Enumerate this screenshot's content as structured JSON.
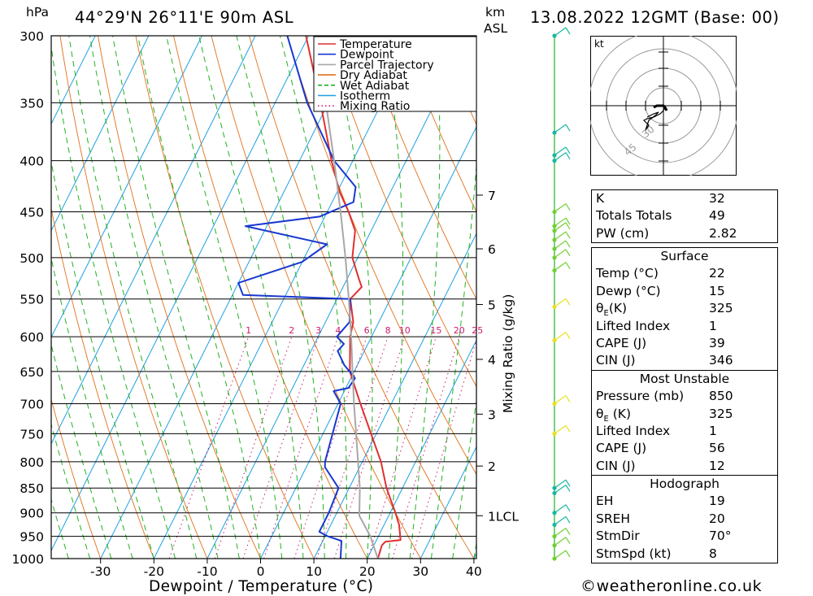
{
  "header": {
    "location": "44°29'N 26°11'E 90m ASL",
    "pressure_unit": "hPa",
    "height_unit_top": "km",
    "height_unit_bottom": "ASL",
    "datetime": "13.08.2022 12GMT (Base: 00)"
  },
  "chart_data": {
    "type": "line",
    "subtype": "skew-T log-P diagram",
    "xlabel": "Dewpoint / Temperature (°C)",
    "ylabel": "hPa",
    "y2label": "Mixing Ratio (g/kg)",
    "pressure_range": [
      1000,
      300
    ],
    "temperature_ticks": [
      -30,
      -20,
      -10,
      0,
      10,
      20,
      30,
      40
    ],
    "pressure_ticks": [
      300,
      350,
      400,
      450,
      500,
      550,
      600,
      650,
      700,
      750,
      800,
      850,
      900,
      950,
      1000
    ],
    "height_ticks_km": [
      {
        "label": "7",
        "pressure": 433
      },
      {
        "label": "6",
        "pressure": 490
      },
      {
        "label": "5",
        "pressure": 557
      },
      {
        "label": "4",
        "pressure": 632
      },
      {
        "label": "3",
        "pressure": 717
      },
      {
        "label": "2",
        "pressure": 808
      },
      {
        "label": "1LCL",
        "pressure": 906
      }
    ],
    "mixing_ratio_labels": [
      "1",
      "2",
      "3",
      "4",
      "6",
      "8",
      "10",
      "15",
      "20",
      "25"
    ],
    "mixing_ratio_values": [
      1,
      2,
      3,
      4,
      6,
      8,
      10,
      15,
      20,
      25
    ],
    "isotherm_color": "#1ca0e0",
    "dry_adiabat_color": "#e07018",
    "wet_adiabat_color": "#22b022",
    "mixing_ratio_color": "#d01870",
    "legend": [
      {
        "label": "Temperature",
        "color": "#e03030",
        "style": "solid"
      },
      {
        "label": "Dewpoint",
        "color": "#1838d0",
        "style": "solid"
      },
      {
        "label": "Parcel Trajectory",
        "color": "#a8a8a8",
        "style": "solid"
      },
      {
        "label": "Dry Adiabat",
        "color": "#e07018",
        "style": "solid"
      },
      {
        "label": "Wet Adiabat",
        "color": "#22b022",
        "style": "dashed"
      },
      {
        "label": "Isotherm",
        "color": "#1ca0e0",
        "style": "solid"
      },
      {
        "label": "Mixing Ratio",
        "color": "#d01870",
        "style": "dotted"
      }
    ],
    "series": [
      {
        "name": "Temperature",
        "color": "#e03030",
        "points": [
          [
            1000,
            22.0
          ],
          [
            970,
            21.5
          ],
          [
            962,
            21.8
          ],
          [
            958,
            24.5
          ],
          [
            925,
            22.8
          ],
          [
            900,
            21.0
          ],
          [
            850,
            17.0
          ],
          [
            800,
            13.5
          ],
          [
            750,
            9.0
          ],
          [
            700,
            4.2
          ],
          [
            650,
            -0.8
          ],
          [
            600,
            -4.0
          ],
          [
            580,
            -4.8
          ],
          [
            550,
            -7.5
          ],
          [
            535,
            -6.5
          ],
          [
            525,
            -7.8
          ],
          [
            500,
            -11.0
          ],
          [
            470,
            -13.0
          ],
          [
            450,
            -16.0
          ],
          [
            430,
            -19.5
          ],
          [
            400,
            -24.0
          ],
          [
            350,
            -31.5
          ],
          [
            300,
            -40.5
          ]
        ]
      },
      {
        "name": "Dewpoint",
        "color": "#1838d0",
        "points": [
          [
            1000,
            15.0
          ],
          [
            960,
            13.5
          ],
          [
            950,
            10.5
          ],
          [
            940,
            8.5
          ],
          [
            900,
            8.5
          ],
          [
            850,
            8.0
          ],
          [
            810,
            3.5
          ],
          [
            800,
            3.0
          ],
          [
            700,
            0.5
          ],
          [
            680,
            -2.0
          ],
          [
            675,
            0.5
          ],
          [
            660,
            0.8
          ],
          [
            640,
            -2.5
          ],
          [
            620,
            -5.0
          ],
          [
            610,
            -4.5
          ],
          [
            600,
            -6.5
          ],
          [
            580,
            -5.5
          ],
          [
            550,
            -7.5
          ],
          [
            545,
            -28.0
          ],
          [
            530,
            -30.0
          ],
          [
            505,
            -20.0
          ],
          [
            485,
            -17.0
          ],
          [
            465,
            -34.0
          ],
          [
            455,
            -21.0
          ],
          [
            440,
            -16.0
          ],
          [
            425,
            -17.0
          ],
          [
            400,
            -23.5
          ],
          [
            350,
            -34.0
          ],
          [
            300,
            -44.0
          ]
        ]
      },
      {
        "name": "Parcel Trajectory",
        "color": "#a8a8a8",
        "points": [
          [
            1000,
            22.0
          ],
          [
            950,
            18.5
          ],
          [
            906,
            14.5
          ],
          [
            850,
            12.0
          ],
          [
            800,
            9.2
          ],
          [
            750,
            6.2
          ],
          [
            700,
            3.0
          ],
          [
            650,
            -0.3
          ],
          [
            600,
            -3.8
          ],
          [
            550,
            -7.8
          ],
          [
            500,
            -12.3
          ],
          [
            450,
            -17.5
          ],
          [
            400,
            -23.5
          ],
          [
            350,
            -30.5
          ],
          [
            300,
            -39.0
          ]
        ]
      }
    ]
  },
  "wind_barbs_pressures": [
    300,
    375,
    395,
    400,
    450,
    465,
    470,
    480,
    490,
    500,
    515,
    560,
    605,
    700,
    750,
    850,
    860,
    900,
    925,
    950,
    970,
    1000
  ],
  "hodograph": {
    "unit": "kt",
    "ring_labels": [
      "30",
      "45"
    ]
  },
  "indices": {
    "k_label": "K",
    "k_value": "32",
    "totals_label": "Totals Totals",
    "totals_value": "49",
    "pw_label": "PW (cm)",
    "pw_value": "2.82"
  },
  "surface": {
    "title": "Surface",
    "temp_label": "Temp (°C)",
    "temp_value": "22",
    "dewp_label": "Dewp (°C)",
    "dewp_value": "15",
    "theta_label_sym": "θ",
    "theta_label_sub": "E",
    "theta_label_rest": "(K)",
    "theta_value": "325",
    "li_label": "Lifted Index",
    "li_value": "1",
    "cape_label": "CAPE (J)",
    "cape_value": "39",
    "cin_label": "CIN (J)",
    "cin_value": "346"
  },
  "most_unstable": {
    "title": "Most Unstable",
    "pressure_label": "Pressure (mb)",
    "pressure_value": "850",
    "theta_label_sym": "θ",
    "theta_label_sub": "E",
    "theta_label_rest": " (K)",
    "theta_value": "325",
    "li_label": "Lifted Index",
    "li_value": "1",
    "cape_label": "CAPE (J)",
    "cape_value": "56",
    "cin_label": "CIN (J)",
    "cin_value": "12"
  },
  "hodograph_table": {
    "title": "Hodograph",
    "eh_label": "EH",
    "eh_value": "19",
    "sreh_label": "SREH",
    "sreh_value": "20",
    "stmdir_label": "StmDir",
    "stmdir_value": "70°",
    "stmspd_label": "StmSpd (kt)",
    "stmspd_value": "8"
  },
  "footer": {
    "copyright_symbol": "©",
    "site": "weatheronline.co.uk"
  }
}
